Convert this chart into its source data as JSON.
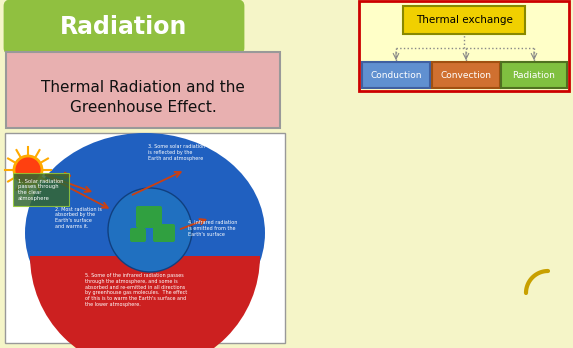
{
  "bg_color": "#f5f5c8",
  "radiation_box_color": "#90c040",
  "radiation_text": "Radiation",
  "radiation_text_color": "#ffffff",
  "subtitle_box_color": "#e8b0b0",
  "subtitle_text_line1": "Thermal Radiation and the",
  "subtitle_text_line2": "Greenhouse Effect.",
  "subtitle_text_color": "#111111",
  "diagram_border_color": "#cc0000",
  "diagram_bg": "#ffffc8",
  "thermal_box_color": "#f0d000",
  "thermal_box_text": "Thermal exchange",
  "thermal_box_text_color": "#000000",
  "conduction_box_color": "#6090d0",
  "conduction_text": "Conduction",
  "convection_box_color": "#d07030",
  "convection_text": "Convection",
  "radiation_sub_box_color": "#80c040",
  "radiation_sub_text": "Radiation",
  "node_text_color": "#ffffff",
  "arrow_color": "#888888",
  "curl_color": "#c8a000",
  "sun_color": "#ff4010",
  "sun_ray_color": "#ffaa00",
  "radiation_arrow_color": "#cc4010",
  "blue_atmosphere": "#2060c0",
  "red_surface": "#cc2020",
  "earth_ocean": "#2070c0",
  "earth_land": "#30a040"
}
